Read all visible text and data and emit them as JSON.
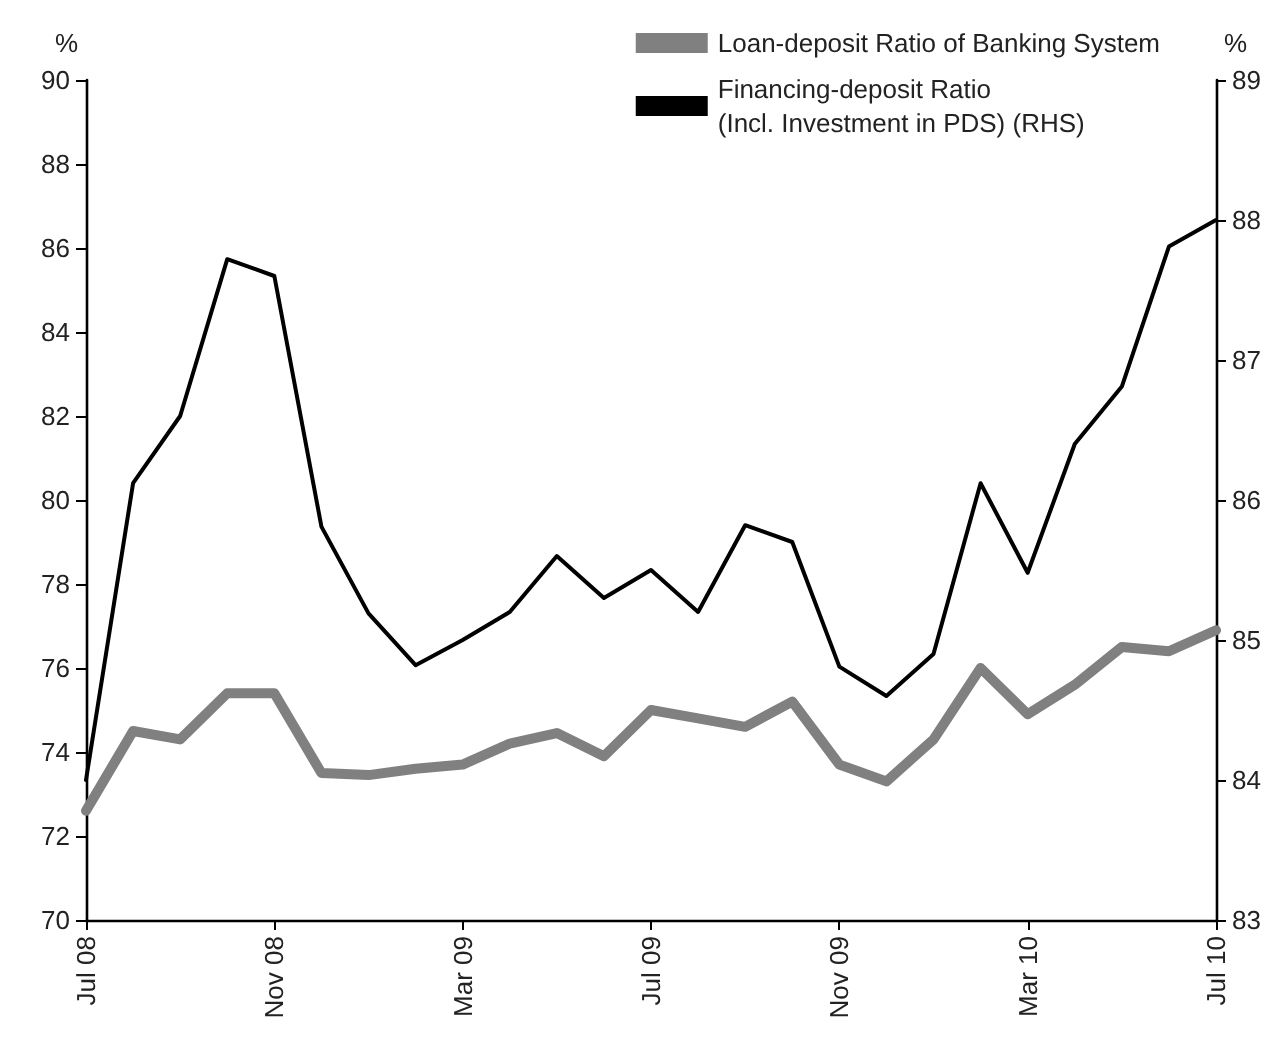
{
  "chart_data": {
    "type": "line",
    "categories": [
      "Jul 08",
      null,
      null,
      null,
      "Nov 08",
      null,
      null,
      null,
      "Mar 09",
      null,
      null,
      null,
      "Jul 09",
      null,
      null,
      null,
      "Nov 09",
      null,
      null,
      null,
      "Mar 10",
      null,
      null,
      null,
      "Jul 10"
    ],
    "series": [
      {
        "name": "Loan-deposit Ratio of Banking System",
        "color": "#808080",
        "values": [
          72.6,
          74.5,
          74.3,
          75.4,
          75.4,
          73.5,
          73.45,
          73.6,
          73.7,
          74.2,
          74.45,
          73.9,
          75.0,
          74.8,
          74.6,
          75.2,
          73.7,
          73.3,
          74.3,
          76.0,
          74.9,
          75.6,
          76.5,
          76.4,
          76.9
        ]
      },
      {
        "name": "Financing-deposit Ratio\n(Incl. Investment in PDS) (RHS)",
        "color": "#000000",
        "axis": "y2",
        "values": [
          84.0,
          86.12,
          86.6,
          87.72,
          87.6,
          85.81,
          85.19,
          84.82,
          85.0,
          85.2,
          85.6,
          85.3,
          85.5,
          85.2,
          85.82,
          85.7,
          84.81,
          84.6,
          84.9,
          86.12,
          85.48,
          86.4,
          86.81,
          87.81,
          88.0
        ]
      }
    ],
    "ylabel": "%",
    "y2label": "%",
    "ylim": [
      70,
      90
    ],
    "yticks": [
      70,
      72,
      74,
      76,
      78,
      80,
      82,
      84,
      86,
      88,
      90
    ],
    "y2lim": [
      83,
      89
    ],
    "y2ticks": [
      83,
      84,
      85,
      86,
      87,
      88,
      89
    ],
    "legend": "top right",
    "grid": false,
    "marker": "none",
    "line_style": "solid"
  }
}
